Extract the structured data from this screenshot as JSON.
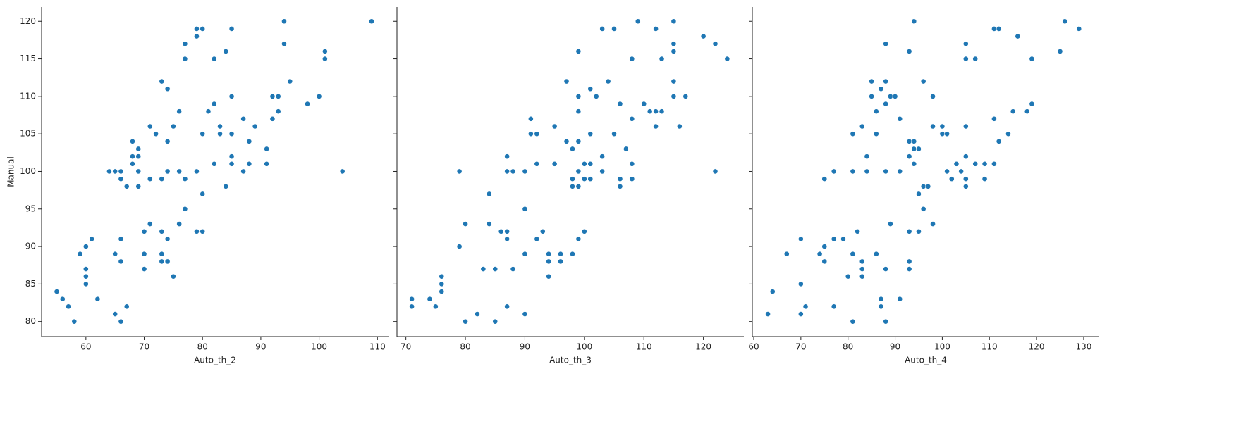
{
  "chart_data": [
    {
      "type": "scatter",
      "xlabel": "Auto_th_2",
      "ylabel": "Manual",
      "color": "#1f77b4",
      "xlim": [
        52.4,
        111.9
      ],
      "xticks": [
        60,
        70,
        80,
        90,
        100,
        110
      ],
      "ylim": [
        78,
        121.9
      ],
      "yticks": [
        80,
        85,
        90,
        95,
        100,
        105,
        110,
        115,
        120
      ],
      "x": [
        55,
        56,
        57,
        58,
        59,
        60,
        60,
        60,
        60,
        61,
        62,
        64,
        65,
        65,
        65,
        66,
        66,
        66,
        66,
        66,
        67,
        67,
        68,
        68,
        68,
        69,
        69,
        69,
        69,
        70,
        70,
        70,
        71,
        71,
        71,
        72,
        73,
        73,
        73,
        73,
        73,
        74,
        74,
        74,
        74,
        74,
        75,
        75,
        76,
        76,
        76,
        77,
        77,
        77,
        77,
        79,
        79,
        79,
        79,
        80,
        80,
        80,
        80,
        81,
        82,
        82,
        82,
        83,
        83,
        84,
        84,
        85,
        85,
        85,
        85,
        85,
        87,
        87,
        88,
        88,
        89,
        91,
        91,
        92,
        92,
        93,
        93,
        94,
        94,
        95,
        98,
        100,
        101,
        101,
        104,
        109
      ],
      "values": [
        84,
        83,
        82,
        80,
        89,
        90,
        87,
        86,
        85,
        91,
        83,
        100,
        100,
        89,
        81,
        100,
        99,
        91,
        88,
        80,
        98,
        82,
        104,
        102,
        101,
        103,
        102,
        100,
        98,
        92,
        89,
        87,
        106,
        99,
        93,
        105,
        112,
        99,
        92,
        89,
        88,
        111,
        104,
        100,
        91,
        88,
        106,
        86,
        108,
        100,
        93,
        117,
        115,
        99,
        95,
        119,
        118,
        100,
        92,
        119,
        105,
        97,
        92,
        108,
        115,
        109,
        101,
        106,
        105,
        116,
        98,
        119,
        110,
        105,
        102,
        101,
        107,
        100,
        104,
        101,
        106,
        103,
        101,
        110,
        107,
        110,
        108,
        120,
        117,
        112,
        109,
        110,
        116,
        115,
        100,
        120
      ]
    },
    {
      "type": "scatter",
      "xlabel": "Auto_th_3",
      "color": "#1f77b4",
      "xlim": [
        68.5,
        126.8
      ],
      "xticks": [
        70,
        80,
        90,
        100,
        110,
        120
      ],
      "ylim": [
        78,
        121.9
      ],
      "x": [
        71,
        71,
        74,
        75,
        76,
        76,
        76,
        79,
        79,
        80,
        80,
        82,
        83,
        84,
        84,
        85,
        85,
        86,
        87,
        87,
        87,
        87,
        87,
        88,
        88,
        90,
        90,
        90,
        90,
        91,
        91,
        92,
        92,
        92,
        93,
        94,
        94,
        94,
        95,
        95,
        96,
        96,
        97,
        97,
        98,
        98,
        98,
        98,
        99,
        99,
        99,
        99,
        99,
        99,
        99,
        100,
        100,
        100,
        101,
        101,
        101,
        101,
        102,
        103,
        103,
        103,
        104,
        105,
        105,
        106,
        106,
        106,
        107,
        108,
        108,
        108,
        108,
        109,
        110,
        111,
        112,
        112,
        112,
        113,
        113,
        115,
        115,
        115,
        115,
        115,
        116,
        117,
        120,
        122,
        122,
        124
      ],
      "values": [
        83,
        82,
        83,
        82,
        86,
        85,
        84,
        100,
        90,
        93,
        80,
        81,
        87,
        97,
        93,
        87,
        80,
        92,
        102,
        100,
        92,
        91,
        82,
        100,
        87,
        100,
        95,
        89,
        81,
        107,
        105,
        105,
        101,
        91,
        92,
        89,
        88,
        86,
        106,
        101,
        89,
        88,
        112,
        104,
        103,
        99,
        98,
        89,
        116,
        110,
        108,
        104,
        100,
        98,
        91,
        101,
        99,
        92,
        111,
        105,
        101,
        99,
        110,
        119,
        102,
        100,
        112,
        119,
        105,
        109,
        99,
        98,
        103,
        115,
        107,
        101,
        99,
        120,
        109,
        108,
        119,
        106,
        108,
        115,
        108,
        120,
        117,
        116,
        112,
        110,
        106,
        110,
        118,
        117,
        100,
        115
      ]
    },
    {
      "type": "scatter",
      "xlabel": "Auto_th_4",
      "color": "#1f77b4",
      "xlim": [
        59.7,
        133.3
      ],
      "xticks": [
        60,
        70,
        80,
        90,
        100,
        110,
        120,
        130
      ],
      "ylim": [
        78,
        121.9
      ],
      "x": [
        63,
        64,
        67,
        70,
        70,
        70,
        71,
        74,
        75,
        75,
        75,
        77,
        77,
        77,
        79,
        80,
        81,
        81,
        81,
        81,
        82,
        83,
        83,
        83,
        83,
        84,
        84,
        85,
        85,
        86,
        86,
        86,
        87,
        87,
        87,
        88,
        88,
        88,
        88,
        88,
        88,
        89,
        89,
        90,
        91,
        91,
        91,
        93,
        93,
        93,
        93,
        93,
        93,
        94,
        94,
        94,
        94,
        95,
        95,
        95,
        96,
        96,
        96,
        97,
        98,
        98,
        98,
        100,
        100,
        101,
        101,
        102,
        103,
        104,
        105,
        105,
        105,
        105,
        105,
        105,
        107,
        107,
        109,
        109,
        111,
        111,
        111,
        112,
        112,
        114,
        115,
        116,
        118,
        119,
        119,
        125,
        126,
        129
      ],
      "values": [
        81,
        84,
        89,
        91,
        85,
        81,
        82,
        89,
        99,
        90,
        88,
        100,
        91,
        82,
        91,
        86,
        105,
        100,
        89,
        80,
        92,
        106,
        88,
        87,
        86,
        102,
        100,
        112,
        110,
        108,
        105,
        89,
        111,
        83,
        82,
        117,
        112,
        109,
        100,
        87,
        80,
        110,
        93,
        110,
        107,
        100,
        83,
        116,
        104,
        102,
        92,
        88,
        87,
        120,
        104,
        103,
        101,
        103,
        97,
        92,
        112,
        98,
        95,
        98,
        110,
        106,
        93,
        106,
        105,
        105,
        100,
        99,
        101,
        100,
        117,
        115,
        106,
        102,
        99,
        98,
        115,
        101,
        101,
        99,
        119,
        107,
        101,
        119,
        104,
        105,
        108,
        118,
        108,
        115,
        109,
        116,
        120,
        119
      ]
    }
  ]
}
